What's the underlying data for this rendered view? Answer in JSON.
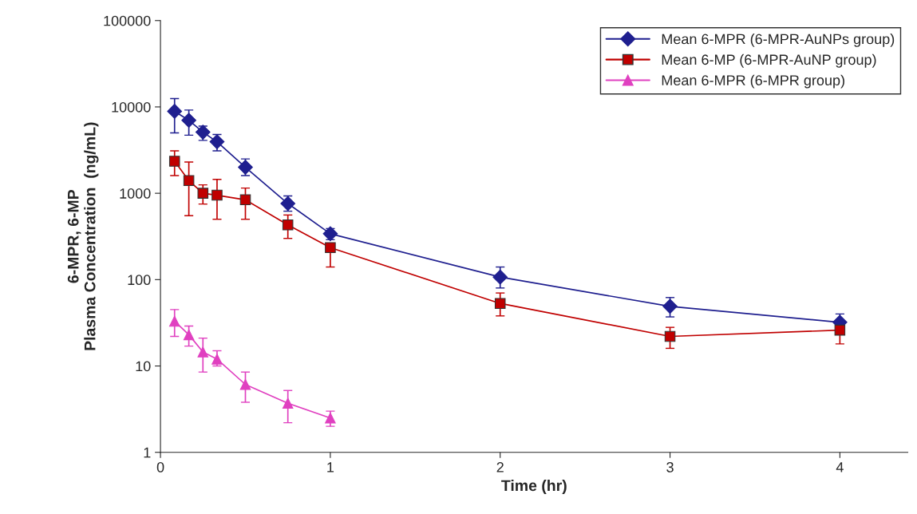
{
  "chart_data": {
    "type": "line",
    "xlabel": "Time (hr)",
    "ylabel": "6-MPR, 6-MP\nPlasma Concentration  (ng/mL)",
    "log": "y",
    "xlim": [
      0,
      4.4
    ],
    "xticks": [
      0,
      1,
      2,
      3,
      4
    ],
    "ylim": [
      1,
      100000
    ],
    "yticks": [
      1,
      10,
      100,
      1000,
      10000,
      100000
    ],
    "grid": false,
    "legend": "top right",
    "series": [
      {
        "name": "Mean 6-MPR (6-MPR-AuNPs group)",
        "color": "#1f1f8f",
        "marker": "diamond",
        "x": [
          0.083,
          0.167,
          0.25,
          0.333,
          0.5,
          0.75,
          1,
          2,
          3,
          4
        ],
        "values": [
          8900,
          7000,
          5100,
          3950,
          2000,
          760,
          340,
          107,
          49,
          32
        ],
        "errors": [
          [
            5000,
            12500
          ],
          [
            4700,
            9200
          ],
          [
            4100,
            6000
          ],
          [
            3100,
            4800
          ],
          [
            1600,
            2500
          ],
          [
            620,
            930
          ],
          [
            290,
            390
          ],
          [
            80,
            140
          ],
          [
            37,
            62
          ],
          [
            32,
            40
          ]
        ]
      },
      {
        "name": "Mean 6-MP (6-MPR-AuNP group)",
        "color": "#c00000",
        "marker": "square",
        "x": [
          0.083,
          0.167,
          0.25,
          0.333,
          0.5,
          0.75,
          1,
          2,
          3,
          4
        ],
        "values": [
          2350,
          1400,
          1000,
          950,
          840,
          430,
          235,
          53,
          22,
          26
        ],
        "errors": [
          [
            1600,
            3100
          ],
          [
            550,
            2300
          ],
          [
            750,
            1250
          ],
          [
            500,
            1450
          ],
          [
            500,
            1150
          ],
          [
            300,
            560
          ],
          [
            140,
            235
          ],
          [
            38,
            70
          ],
          [
            16,
            28
          ],
          [
            18,
            26
          ]
        ]
      },
      {
        "name": "Mean 6-MPR (6-MPR group)",
        "color": "#e040c0",
        "marker": "triangle",
        "x": [
          0.083,
          0.167,
          0.25,
          0.333,
          0.5,
          0.75,
          1
        ],
        "values": [
          33,
          23,
          14.5,
          12,
          6.1,
          3.7,
          2.5
        ],
        "errors": [
          [
            22,
            45
          ],
          [
            17,
            29
          ],
          [
            8.5,
            21
          ],
          [
            10,
            15
          ],
          [
            3.8,
            8.5
          ],
          [
            2.2,
            5.2
          ],
          [
            2.0,
            3.0
          ]
        ]
      }
    ]
  }
}
